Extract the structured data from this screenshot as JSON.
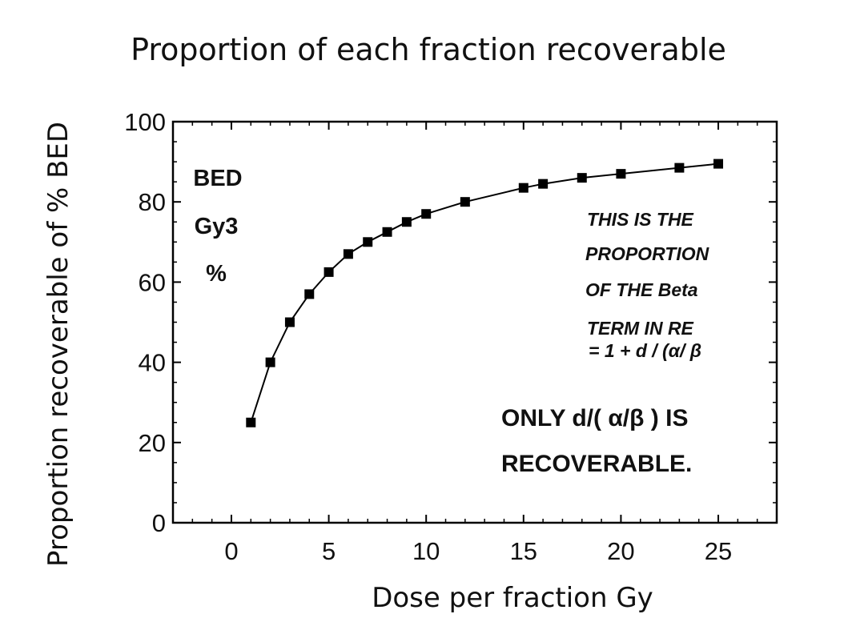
{
  "chart_data": {
    "type": "line",
    "title": "Proportion of each fraction recoverable",
    "xlabel": "Dose per fraction Gy",
    "ylabel": "Proportion recoverable of % BED",
    "xlim": [
      -3,
      28
    ],
    "ylim": [
      0,
      100
    ],
    "xticks": [
      0,
      5,
      10,
      15,
      20,
      25
    ],
    "yticks": [
      0,
      20,
      40,
      60,
      80,
      100
    ],
    "x": [
      1,
      2,
      3,
      4,
      5,
      6,
      7,
      8,
      9,
      10,
      12,
      15,
      16,
      18,
      20,
      23,
      25
    ],
    "series": [
      {
        "values": [
          25,
          40,
          50,
          57,
          62.5,
          67,
          70,
          72.5,
          75,
          77,
          80,
          83.5,
          84.5,
          86,
          87,
          88.5,
          89.5
        ],
        "marker": "square",
        "color": "#000000"
      }
    ],
    "grid": false,
    "annotations": {
      "left_label": [
        "BED",
        "Gy3",
        "%"
      ],
      "note_italic": [
        "THIS IS THE",
        "PROPORTION",
        "OF THE Beta",
        "TERM IN RE",
        "= 1 +  d / (α/ β"
      ],
      "note_bold": [
        "ONLY  d/( α/β ) IS",
        "RECOVERABLE."
      ]
    }
  }
}
